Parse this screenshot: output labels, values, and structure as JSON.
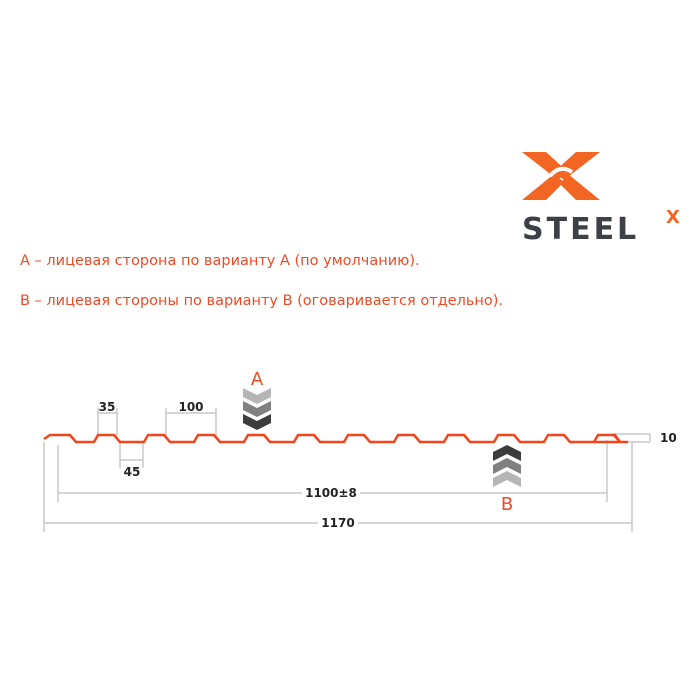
{
  "logo": {
    "text": "STEEL",
    "superscript": "X",
    "brand_color": "#f26522",
    "text_color": "#3d4147"
  },
  "notes": [
    "A – лицевая сторона по варианту А (по умолчанию).",
    "B – лицевая стороны по варианту B (оговаривается отдельно)."
  ],
  "diagram": {
    "profile_color": "#f2451c",
    "side_a_label": "A",
    "side_b_label": "B",
    "dimensions": {
      "crest": "35",
      "pitch": "100",
      "trough": "45",
      "useful_width": "1100±8",
      "total_width": "1170",
      "height": "10"
    }
  }
}
